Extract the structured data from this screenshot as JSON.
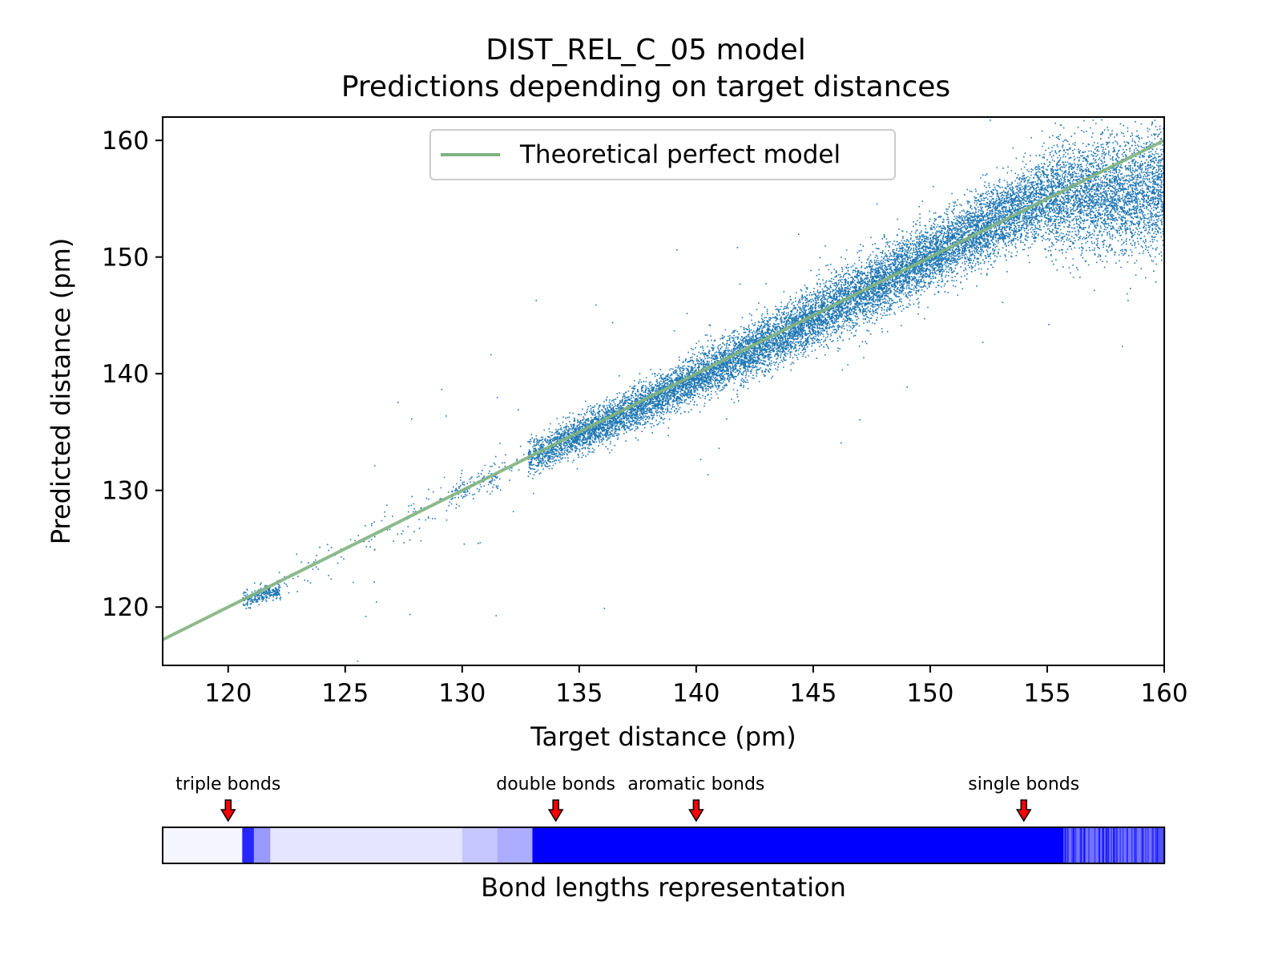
{
  "chart_data": [
    {
      "type": "scatter",
      "title": "DIST_REL_C_05 model",
      "subtitle": "Predictions depending on target distances",
      "xlabel": "Target distance (pm)",
      "ylabel": "Predicted distance (pm)",
      "xlim": [
        117.2,
        160
      ],
      "ylim": [
        115,
        162
      ],
      "xticks": [
        120,
        125,
        130,
        135,
        140,
        145,
        150,
        155,
        160
      ],
      "yticks": [
        120,
        130,
        140,
        150,
        160
      ],
      "grid": false,
      "legend": {
        "placement": "upper center",
        "entries": [
          "Theoretical perfect model"
        ]
      },
      "colors": {
        "points": "#1f77b4",
        "reference_line": "#7fb27f"
      },
      "reference_line": {
        "name": "Theoretical perfect model",
        "x": [
          117.2,
          160
        ],
        "y": [
          117.2,
          160
        ]
      },
      "point_clusters": [
        {
          "x_range": [
            120.6,
            122.2
          ],
          "y_center": 121.0,
          "spread": 0.35,
          "density": "medium"
        },
        {
          "x_range": [
            129.5,
            131.5
          ],
          "y_center": 130.5,
          "spread": 0.5,
          "density": "low"
        },
        {
          "x_range": [
            132.8,
            160
          ],
          "y_center": "follows y = x, flattening to ~155 above 155",
          "spread": 1.5,
          "density": "very high"
        }
      ]
    },
    {
      "type": "heatmap",
      "xlabel": "Bond lengths representation",
      "xlim": [
        117.2,
        160
      ],
      "color": "#0000ff",
      "density_profile": [
        {
          "x_range": [
            117.2,
            120.6
          ],
          "intensity": 0.04
        },
        {
          "x_range": [
            120.6,
            121.1
          ],
          "intensity": 0.85
        },
        {
          "x_range": [
            121.1,
            121.8
          ],
          "intensity": 0.4
        },
        {
          "x_range": [
            121.8,
            130.0
          ],
          "intensity": 0.1
        },
        {
          "x_range": [
            130.0,
            131.5
          ],
          "intensity": 0.22
        },
        {
          "x_range": [
            131.5,
            133.0
          ],
          "intensity": 0.32
        },
        {
          "x_range": [
            133.0,
            155.7
          ],
          "intensity": 1.0
        },
        {
          "x_range": [
            155.7,
            160.0
          ],
          "intensity": 0.55
        }
      ],
      "annotations": [
        {
          "label": "triple bonds",
          "x": 120
        },
        {
          "label": "double bonds",
          "x": 134
        },
        {
          "label": "aromatic bonds",
          "x": 140
        },
        {
          "label": "single bonds",
          "x": 154
        }
      ]
    }
  ]
}
